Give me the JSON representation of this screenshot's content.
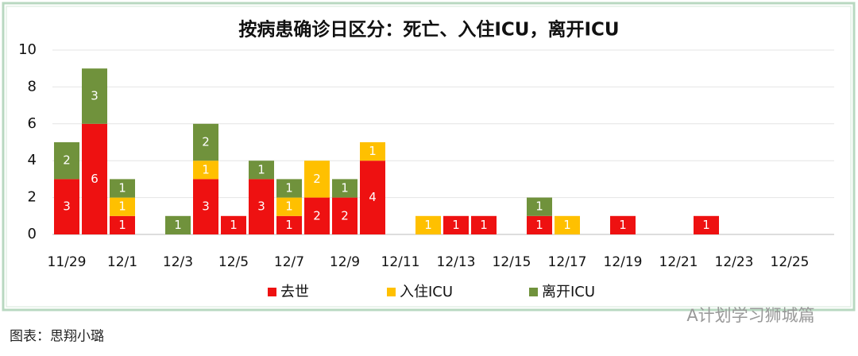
{
  "chart_data": {
    "type": "stacked_bar",
    "title": "按病患确诊日区分：死亡、入住ICU，离开ICU",
    "categories": [
      "11/29",
      null,
      "12/1",
      null,
      "12/3",
      null,
      "12/5",
      null,
      "12/7",
      null,
      "12/9",
      null,
      "12/11",
      null,
      "12/13",
      null,
      "12/15",
      null,
      "12/17",
      null,
      "12/19",
      null,
      "12/21",
      null,
      "12/23",
      null,
      "12/25",
      null
    ],
    "series": [
      {
        "name": "去世",
        "color": "#ee1111",
        "values": [
          3,
          6,
          1,
          0,
          0,
          3,
          1,
          3,
          1,
          2,
          2,
          4,
          0,
          0,
          1,
          1,
          0,
          1,
          0,
          0,
          1,
          0,
          0,
          1,
          0,
          0,
          0,
          0
        ]
      },
      {
        "name": "入住ICU",
        "color": "#ffc000",
        "values": [
          0,
          0,
          1,
          0,
          0,
          1,
          0,
          0,
          1,
          2,
          0,
          1,
          0,
          1,
          0,
          0,
          0,
          0,
          1,
          0,
          0,
          0,
          0,
          0,
          0,
          0,
          0,
          0
        ]
      },
      {
        "name": "离开ICU",
        "color": "#70923c",
        "values": [
          2,
          3,
          1,
          0,
          1,
          2,
          0,
          1,
          1,
          0,
          1,
          0,
          0,
          0,
          0,
          0,
          0,
          1,
          0,
          0,
          0,
          0,
          0,
          0,
          0,
          0,
          0,
          0
        ]
      }
    ],
    "ylim": [
      0,
      10
    ],
    "yticks": [
      0,
      2,
      4,
      6,
      8,
      10
    ],
    "grid": true,
    "legend": "bottom"
  },
  "watermark": "A计划学习狮城篇",
  "caption": "图表：思翔小璐"
}
